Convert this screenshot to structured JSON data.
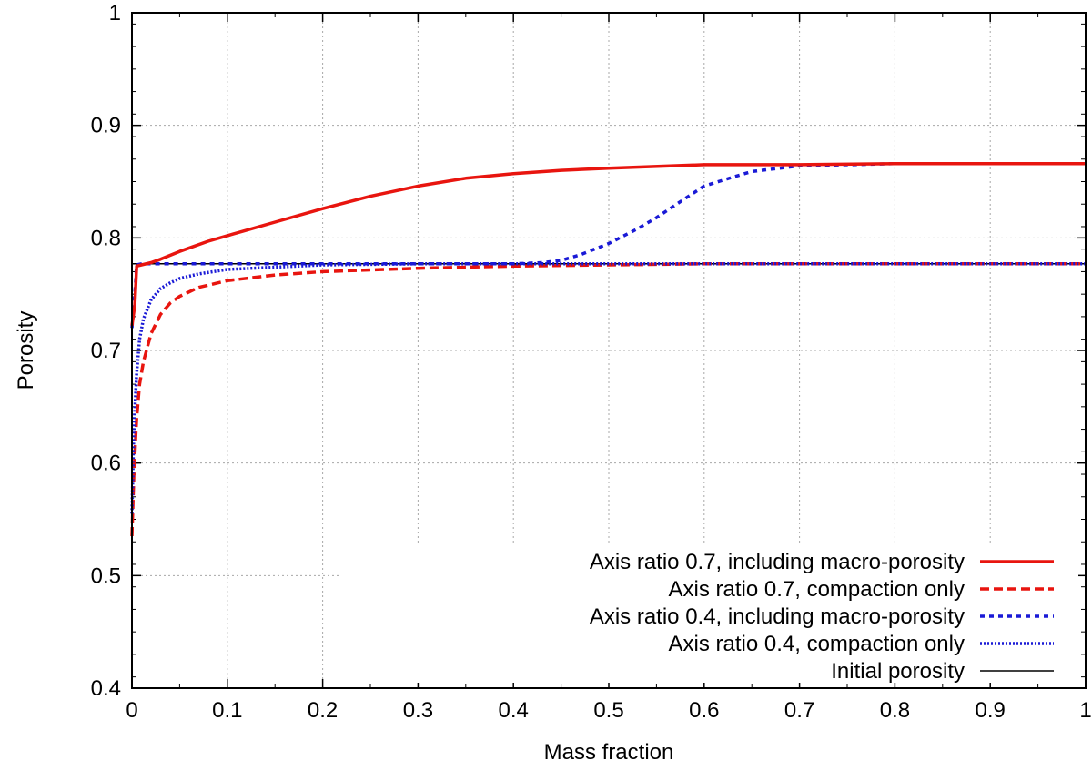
{
  "chart_data": {
    "type": "line",
    "title": "",
    "xlabel": "Mass fraction",
    "ylabel": "Porosity",
    "xlim": [
      0,
      1
    ],
    "ylim": [
      0.4,
      1
    ],
    "grid": true,
    "legend_position": "bottom-right",
    "x_ticks": [
      0,
      0.1,
      0.2,
      0.3,
      0.4,
      0.5,
      0.6,
      0.7,
      0.8,
      0.9,
      1
    ],
    "x_tick_labels": [
      "0",
      "0.1",
      "0.2",
      "0.3",
      "0.4",
      "0.5",
      "0.6",
      "0.7",
      "0.8",
      "0.9",
      "1"
    ],
    "y_ticks": [
      0.4,
      0.5,
      0.6,
      0.7,
      0.8,
      0.9,
      1
    ],
    "y_tick_labels": [
      "0.4",
      "0.5",
      "0.6",
      "0.7",
      "0.8",
      "0.9",
      "1"
    ],
    "series": [
      {
        "name": "Axis ratio 0.7, including macro-porosity",
        "color": "#e8150f",
        "style": "solid",
        "x": [
          0,
          0.003,
          0.005,
          0.01,
          0.02,
          0.03,
          0.05,
          0.08,
          0.1,
          0.15,
          0.2,
          0.25,
          0.3,
          0.35,
          0.4,
          0.45,
          0.5,
          0.6,
          0.7,
          0.8,
          0.9,
          1.0
        ],
        "y": [
          0.722,
          0.74,
          0.775,
          0.776,
          0.778,
          0.781,
          0.788,
          0.797,
          0.802,
          0.814,
          0.826,
          0.837,
          0.846,
          0.853,
          0.857,
          0.86,
          0.862,
          0.865,
          0.865,
          0.866,
          0.866,
          0.866
        ]
      },
      {
        "name": "Axis ratio 0.7, compaction only",
        "color": "#e8150f",
        "style": "dashed",
        "x": [
          0,
          0.002,
          0.005,
          0.008,
          0.012,
          0.02,
          0.03,
          0.04,
          0.05,
          0.07,
          0.1,
          0.15,
          0.2,
          0.3,
          0.4,
          0.5,
          0.6,
          0.8,
          1.0
        ],
        "y": [
          0.535,
          0.59,
          0.64,
          0.67,
          0.69,
          0.715,
          0.732,
          0.742,
          0.748,
          0.756,
          0.762,
          0.767,
          0.77,
          0.773,
          0.775,
          0.776,
          0.777,
          0.777,
          0.777
        ]
      },
      {
        "name": "Axis ratio 0.4, including macro-porosity",
        "color": "#1a1ad6",
        "style": "dotted-heavy",
        "x": [
          0,
          0.003,
          0.005,
          0.01,
          0.02,
          0.05,
          0.1,
          0.2,
          0.3,
          0.4,
          0.43,
          0.45,
          0.47,
          0.5,
          0.53,
          0.55,
          0.58,
          0.6,
          0.63,
          0.65,
          0.7,
          0.8,
          0.9,
          1.0
        ],
        "y": [
          0.72,
          0.75,
          0.776,
          0.777,
          0.777,
          0.777,
          0.777,
          0.777,
          0.777,
          0.777,
          0.778,
          0.78,
          0.785,
          0.795,
          0.808,
          0.818,
          0.835,
          0.846,
          0.854,
          0.859,
          0.864,
          0.866,
          0.866,
          0.866
        ]
      },
      {
        "name": "Axis ratio 0.4, compaction only",
        "color": "#1a1ad6",
        "style": "dotted-fine",
        "x": [
          0,
          0.002,
          0.005,
          0.008,
          0.012,
          0.02,
          0.03,
          0.04,
          0.05,
          0.07,
          0.1,
          0.15,
          0.2,
          0.3,
          0.5,
          0.7,
          1.0
        ],
        "y": [
          0.555,
          0.63,
          0.68,
          0.71,
          0.728,
          0.745,
          0.755,
          0.76,
          0.764,
          0.768,
          0.772,
          0.774,
          0.776,
          0.777,
          0.777,
          0.777,
          0.777
        ]
      },
      {
        "name": "Initial porosity",
        "color": "#000000",
        "style": "thin",
        "x": [
          0,
          1
        ],
        "y": [
          0.777,
          0.777
        ]
      }
    ]
  }
}
